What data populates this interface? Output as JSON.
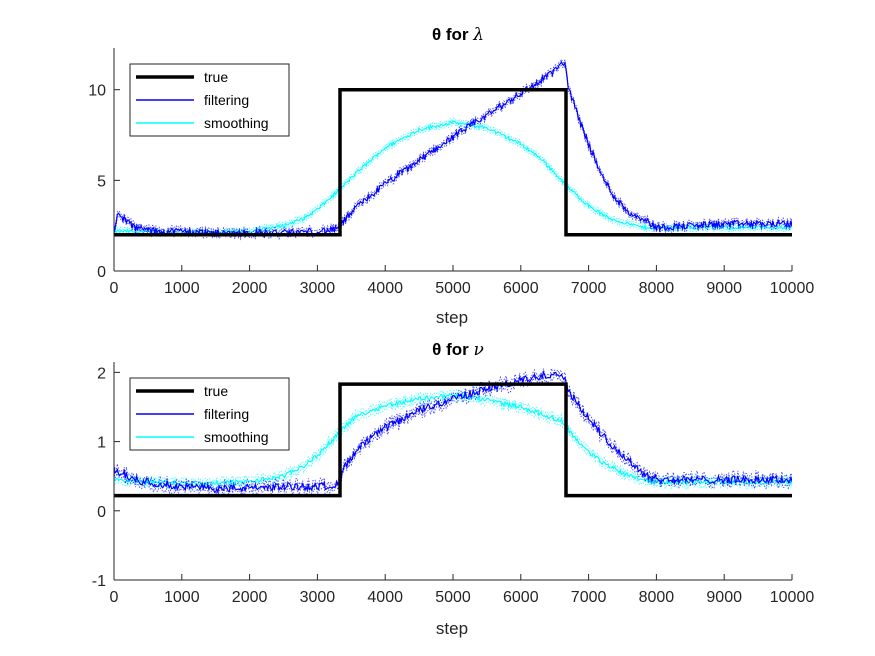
{
  "colors": {
    "true": "#000000",
    "filtering": "#0000ff",
    "smoothing": "#00ffff",
    "axes": "#262626"
  },
  "chart_data": [
    {
      "type": "line",
      "title_prefix": "θ for",
      "title_symbol": "λ",
      "xlabel": "step",
      "ylabel": "",
      "xlim": [
        0,
        10000
      ],
      "ylim": [
        0,
        12.3
      ],
      "xticks": [
        0,
        1000,
        2000,
        3000,
        4000,
        5000,
        6000,
        7000,
        8000,
        9000,
        10000
      ],
      "yticks": [
        0,
        5,
        10
      ],
      "grid": false,
      "legend_position": "top-left",
      "series": [
        {
          "name": "true",
          "x": [
            0,
            3333,
            3333,
            6667,
            6667,
            10000
          ],
          "y": [
            2,
            2,
            10,
            10,
            2,
            2
          ]
        },
        {
          "name": "filtering",
          "x": [
            0,
            50,
            150,
            300,
            600,
            1000,
            1500,
            2000,
            2500,
            3000,
            3300,
            3400,
            3600,
            4000,
            4500,
            5000,
            5500,
            6000,
            6300,
            6500,
            6650,
            6700,
            6800,
            7000,
            7200,
            7400,
            7600,
            7800,
            8000,
            8500,
            9000,
            9500,
            10000
          ],
          "y": [
            2.0,
            3.1,
            2.9,
            2.4,
            2.2,
            2.2,
            2.1,
            2.1,
            2.1,
            2.2,
            2.3,
            2.8,
            3.6,
            4.8,
            6.1,
            7.4,
            8.6,
            9.8,
            10.5,
            11.1,
            11.5,
            10.2,
            9.0,
            7.0,
            5.2,
            4.0,
            3.2,
            2.9,
            2.4,
            2.5,
            2.6,
            2.6,
            2.6
          ]
        },
        {
          "name": "smoothing",
          "x": [
            0,
            500,
            1000,
            1500,
            2000,
            2500,
            2800,
            3000,
            3300,
            3600,
            4000,
            4500,
            5000,
            5500,
            6000,
            6300,
            6700,
            7000,
            7300,
            7600,
            7800,
            8000,
            8500,
            9000,
            9500,
            10000
          ],
          "y": [
            2.2,
            2.15,
            2.1,
            2.1,
            2.2,
            2.5,
            2.9,
            3.4,
            4.4,
            5.5,
            6.8,
            7.8,
            8.2,
            7.9,
            7.0,
            6.2,
            4.6,
            3.6,
            2.9,
            2.6,
            2.4,
            2.4,
            2.4,
            2.4,
            2.4,
            2.4
          ]
        }
      ]
    },
    {
      "type": "line",
      "title_prefix": "θ for",
      "title_symbol": "ν",
      "xlabel": "step",
      "ylabel": "",
      "xlim": [
        0,
        10000
      ],
      "ylim": [
        -1,
        2.15
      ],
      "xticks": [
        0,
        1000,
        2000,
        3000,
        4000,
        5000,
        6000,
        7000,
        8000,
        9000,
        10000
      ],
      "yticks": [
        -1,
        0,
        1,
        2
      ],
      "grid": false,
      "legend_position": "top-left",
      "series": [
        {
          "name": "true",
          "x": [
            0,
            3333,
            3333,
            6667,
            6667,
            10000
          ],
          "y": [
            0.22,
            0.22,
            1.83,
            1.83,
            0.22,
            0.22
          ]
        },
        {
          "name": "filtering",
          "x": [
            0,
            100,
            300,
            600,
            1000,
            1500,
            2000,
            2500,
            3000,
            3300,
            3400,
            3600,
            4000,
            4500,
            5000,
            5500,
            6000,
            6300,
            6600,
            6700,
            6900,
            7200,
            7500,
            7800,
            8000,
            8500,
            9000,
            9500,
            10000
          ],
          "y": [
            0.6,
            0.55,
            0.45,
            0.4,
            0.35,
            0.32,
            0.33,
            0.35,
            0.35,
            0.38,
            0.62,
            0.9,
            1.2,
            1.45,
            1.62,
            1.76,
            1.88,
            1.95,
            2.0,
            1.75,
            1.45,
            1.1,
            0.8,
            0.55,
            0.45,
            0.45,
            0.45,
            0.45,
            0.45
          ]
        },
        {
          "name": "smoothing",
          "x": [
            0,
            500,
            1000,
            1500,
            2000,
            2500,
            2800,
            3000,
            3200,
            3400,
            3600,
            4000,
            4500,
            5000,
            5500,
            6000,
            6300,
            6600,
            6800,
            7000,
            7200,
            7500,
            7800,
            8000,
            8500,
            9000,
            9500,
            10000
          ],
          "y": [
            0.45,
            0.42,
            0.4,
            0.4,
            0.42,
            0.5,
            0.65,
            0.8,
            1.0,
            1.22,
            1.38,
            1.52,
            1.62,
            1.67,
            1.6,
            1.5,
            1.4,
            1.3,
            1.05,
            0.85,
            0.7,
            0.55,
            0.45,
            0.42,
            0.42,
            0.42,
            0.42,
            0.42
          ]
        }
      ]
    }
  ]
}
